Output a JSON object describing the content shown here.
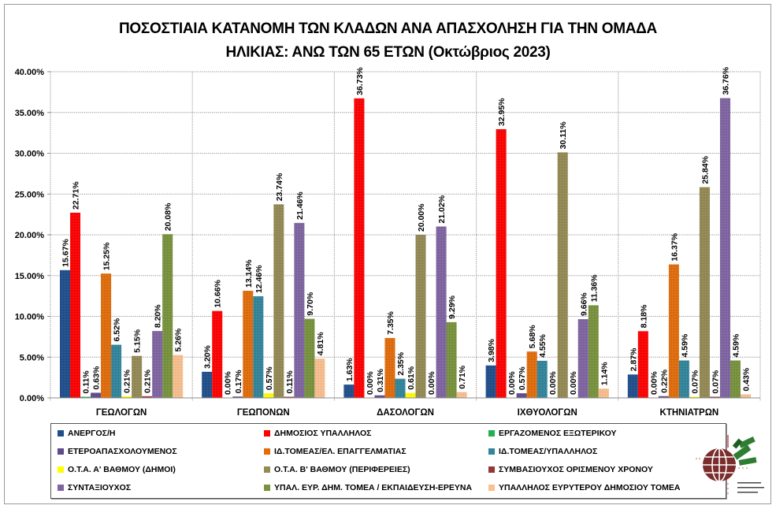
{
  "title": {
    "line1": "ΠΟΣΟΣΤΙΑΙΑ ΚΑΤΑΝΟΜΗ ΤΩΝ ΚΛΑΔΩΝ ΑΝΑ ΑΠΑΣΧΟΛΗΣΗ ΓΙΑ ΤΗΝ ΟΜΑΔΑ",
    "line2": "ΗΛΙΚΙΑΣ: ΑΝΩ ΤΩΝ 65 ΕΤΩΝ (Οκτώβριος 2023)"
  },
  "logo": {
    "icon": "globe-with-olive-branch-logo"
  },
  "chart_data": {
    "type": "bar",
    "title": "ΠΟΣΟΣΤΙΑΙΑ ΚΑΤΑΝΟΜΗ ΤΩΝ ΚΛΑΔΩΝ ΑΝΑ ΑΠΑΣΧΟΛΗΣΗ ΓΙΑ ΤΗΝ ΟΜΑΔΑ ΗΛΙΚΙΑΣ: ΑΝΩ ΤΩΝ 65 ΕΤΩΝ (Οκτώβριος 2023)",
    "xlabel": "",
    "ylabel": "",
    "ylim": [
      0,
      40
    ],
    "yticks": [
      "0.00%",
      "5.00%",
      "10.00%",
      "15.00%",
      "20.00%",
      "25.00%",
      "30.00%",
      "35.00%",
      "40.00%"
    ],
    "grid": true,
    "legend_position": "bottom",
    "value_format": "percent_2dp",
    "categories": [
      "ΓΕΩΛΟΓΩΝ",
      "ΓΕΩΠΟΝΩΝ",
      "ΔΑΣΟΛΟΓΩΝ",
      "ΙΧΘΥΟΛΟΓΩΝ",
      "ΚΤΗΝΙΑΤΡΩΝ"
    ],
    "series": [
      {
        "name": "ΑΝΕΡΓΟΣ/Η",
        "color": "#1f4e8c",
        "values": [
          15.67,
          3.2,
          1.63,
          3.98,
          2.87
        ]
      },
      {
        "name": "ΔΗΜΟΣΙΟΣ ΥΠΑΛΛΗΛΟΣ",
        "color": "#ff0000",
        "values": [
          22.71,
          10.66,
          36.73,
          32.95,
          8.18
        ]
      },
      {
        "name": "ΕΡΓΑΖΟΜΕΝΟΣ ΕΞΩΤΕΡΙΚΟΥ",
        "color": "#22b050",
        "values": [
          0.11,
          0.0,
          0.0,
          0.0,
          0.0
        ]
      },
      {
        "name": "ΕΤΕΡΟΑΠΑΣΧΟΛΟΥΜΕΝΟΣ",
        "color": "#5f4a8b",
        "values": [
          0.63,
          0.17,
          0.31,
          0.57,
          0.22
        ]
      },
      {
        "name": "ΙΔ.ΤΟΜΕΑΣ/ΕΛ.  ΕΠΑΓΓΕΛΜΑΤΙΑΣ",
        "color": "#e36c0a",
        "values": [
          15.25,
          13.14,
          7.35,
          5.68,
          16.37
        ]
      },
      {
        "name": "ΙΔ.ΤΟΜΕΑΣ/ΥΠΑΛΛΗΛΟΣ",
        "color": "#31859c",
        "values": [
          6.52,
          12.46,
          2.35,
          4.55,
          4.59
        ]
      },
      {
        "name": "Ο.Τ.Α. Α' ΒΑΘΜΟΥ (ΔΗΜΟΙ)",
        "color": "#ffff00",
        "values": [
          0.21,
          0.57,
          0.61,
          0.0,
          0.07
        ]
      },
      {
        "name": "Ο.Τ.Α. Β' ΒΑΘΜΟΥ (ΠΕΡΙΦΕΡΕΙΕΣ)",
        "color": "#948a54",
        "values": [
          5.15,
          23.74,
          20.0,
          30.11,
          25.84
        ]
      },
      {
        "name": "ΣΥΜΒΑΣΙΟΥΧΟΣ  ΟΡΙΣΜΕΝΟΥ ΧΡΟΝΟΥ",
        "color": "#953735",
        "values": [
          0.21,
          0.11,
          0.0,
          0.0,
          0.07
        ]
      },
      {
        "name": "ΣΥΝΤΑΞΙΟΥΧΟΣ",
        "color": "#8064a2",
        "values": [
          8.2,
          21.46,
          21.02,
          9.66,
          36.76
        ]
      },
      {
        "name": "ΥΠΑΛ. ΕΥΡ. ΔΗΜ. ΤΟΜΕΑ  / ΕΚΠΑΙΔΕΥΣΗ-ΕΡΕΥΝΑ",
        "color": "#77933c",
        "values": [
          20.08,
          9.7,
          9.29,
          11.36,
          4.59
        ]
      },
      {
        "name": "ΥΠΑΛΛΗΛΟΣ ΕΥΡΥΤΕΡΟΥ ΔΗΜΟΣΙΟΥ ΤΟΜΕΑ",
        "color": "#fac090",
        "values": [
          5.26,
          4.81,
          0.71,
          1.14,
          0.43
        ]
      }
    ],
    "legend_order_rows": [
      [
        "ΑΝΕΡΓΟΣ/Η",
        "ΔΗΜΟΣΙΟΣ ΥΠΑΛΛΗΛΟΣ",
        "ΕΡΓΑΖΟΜΕΝΟΣ ΕΞΩΤΕΡΙΚΟΥ"
      ],
      [
        "ΕΤΕΡΟΑΠΑΣΧΟΛΟΥΜΕΝΟΣ",
        "ΙΔ.ΤΟΜΕΑΣ/ΕΛ.  ΕΠΑΓΓΕΛΜΑΤΙΑΣ",
        "ΙΔ.ΤΟΜΕΑΣ/ΥΠΑΛΛΗΛΟΣ"
      ],
      [
        "Ο.Τ.Α. Α' ΒΑΘΜΟΥ (ΔΗΜΟΙ)",
        "Ο.Τ.Α. Β' ΒΑΘΜΟΥ (ΠΕΡΙΦΕΡΕΙΕΣ)",
        "ΣΥΜΒΑΣΙΟΥΧΟΣ  ΟΡΙΣΜΕΝΟΥ ΧΡΟΝΟΥ"
      ],
      [
        "ΣΥΝΤΑΞΙΟΥΧΟΣ",
        "ΥΠΑΛ. ΕΥΡ. ΔΗΜ. ΤΟΜΕΑ  / ΕΚΠΑΙΔΕΥΣΗ-ΕΡΕΥΝΑ",
        "ΥΠΑΛΛΗΛΟΣ ΕΥΡΥΤΕΡΟΥ ΔΗΜΟΣΙΟΥ ΤΟΜΕΑ"
      ]
    ]
  }
}
